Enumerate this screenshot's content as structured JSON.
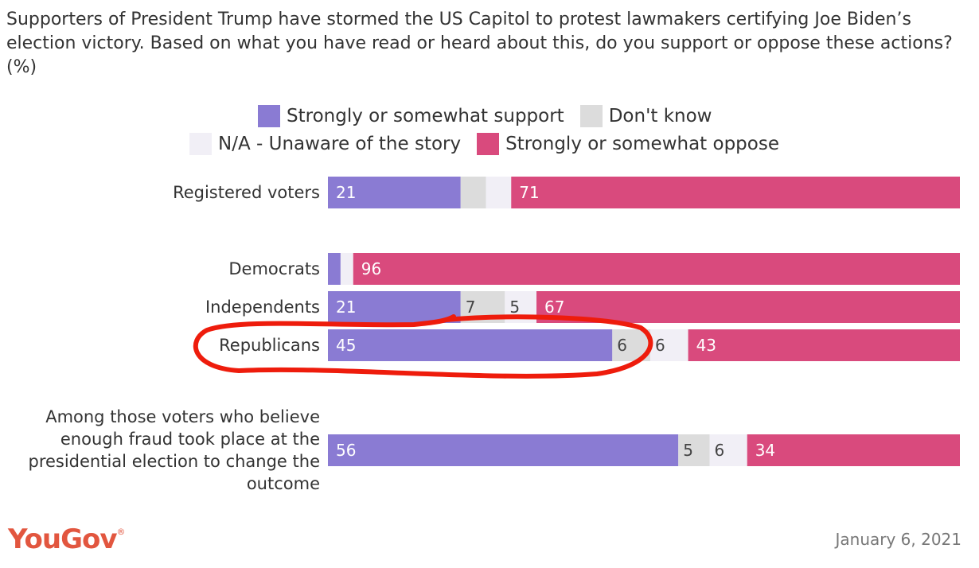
{
  "chart_data": {
    "type": "bar",
    "stacked": true,
    "orientation": "horizontal",
    "title": "Supporters of President Trump have stormed the US Capitol to protest lawmakers certifying Joe Biden’s election victory. Based on what you have read or heard about this, do you support or oppose these actions? (%)",
    "categories": [
      "Registered voters",
      "Democrats",
      "Independents",
      "Republicans",
      "Among those voters who believe enough fraud took place at the presidential election to change the outcome"
    ],
    "series": [
      {
        "name": "Strongly or somewhat support",
        "color": "#8a7bd3",
        "values": [
          21,
          2,
          21,
          45,
          56
        ]
      },
      {
        "name": "Don't know",
        "color": "#dcdcdc",
        "values": [
          4,
          0,
          7,
          6,
          5
        ]
      },
      {
        "name": "N/A - Unaware of the story",
        "color": "#f1eff6",
        "values": [
          4,
          2,
          5,
          6,
          6
        ]
      },
      {
        "name": "Strongly or somewhat oppose",
        "color": "#d94a7d",
        "values": [
          71,
          96,
          67,
          43,
          34
        ]
      }
    ],
    "data_labels": [
      [
        "21",
        "",
        "",
        "71"
      ],
      [
        "",
        "",
        "",
        "96"
      ],
      [
        "21",
        "7",
        "5",
        "67"
      ],
      [
        "45",
        "6",
        "6",
        "43"
      ],
      [
        "56",
        "5",
        "6",
        "34"
      ]
    ],
    "xlim": [
      0,
      100
    ],
    "legend_position": "top",
    "annotation": "red hand-drawn circle around Republicans row"
  },
  "legend": {
    "support": "Strongly or somewhat support",
    "dont_know": "Don't know",
    "na": "N/A - Unaware of the story",
    "oppose": "Strongly or somewhat oppose"
  },
  "labels": {
    "registered": "Registered voters",
    "democrats": "Democrats",
    "independents": "Independents",
    "republicans": "Republicans",
    "fraud_line1": "Among those voters who believe",
    "fraud_line2": "enough fraud took place at the",
    "fraud_line3": "presidential election to change the",
    "fraud_line4": "outcome"
  },
  "footer": {
    "brand": "YouGov",
    "brand_mark": "®",
    "date": "January 6, 2021"
  },
  "colors": {
    "support": "#8a7bd3",
    "dont_know": "#dcdcdc",
    "na": "#f1eff6",
    "oppose": "#d94a7d",
    "annotation": "#ee1c0c",
    "brand": "#e2563f"
  }
}
